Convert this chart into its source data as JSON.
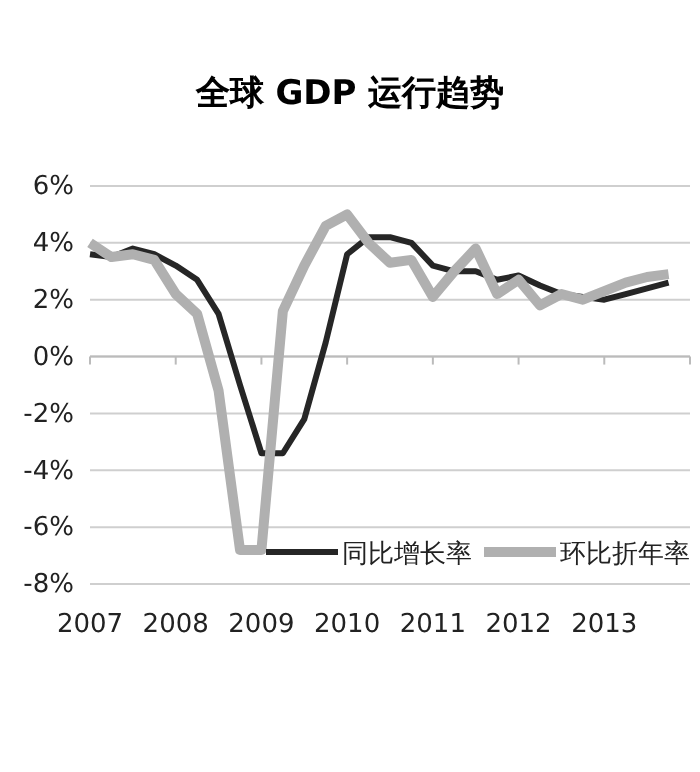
{
  "chart_data": {
    "type": "line",
    "title": "全球 GDP 运行趋势",
    "x": [
      2007,
      2007.25,
      2007.5,
      2007.75,
      2008,
      2008.25,
      2008.5,
      2008.75,
      2009,
      2009.25,
      2009.5,
      2009.75,
      2010,
      2010.25,
      2010.5,
      2010.75,
      2011,
      2011.25,
      2011.5,
      2011.75,
      2012,
      2012.25,
      2012.5,
      2012.75,
      2013,
      2013.25,
      2013.5,
      2013.75
    ],
    "series": [
      {
        "name": "同比增长率",
        "color": "#262626",
        "values": [
          3.6,
          3.5,
          3.8,
          3.6,
          3.2,
          2.7,
          1.5,
          -1.0,
          -3.4,
          -3.4,
          -2.2,
          0.5,
          3.6,
          4.2,
          4.2,
          4.0,
          3.2,
          3.0,
          3.0,
          2.7,
          2.85,
          2.5,
          2.2,
          2.1,
          2.0,
          2.2,
          2.4,
          2.6
        ]
      },
      {
        "name": "环比折年率",
        "color": "#b0b0b0",
        "values": [
          4.0,
          3.5,
          3.6,
          3.4,
          2.2,
          1.5,
          -1.2,
          -6.8,
          -6.8,
          1.6,
          3.2,
          4.6,
          5.0,
          4.0,
          3.3,
          3.4,
          2.1,
          3.0,
          3.8,
          2.2,
          2.7,
          1.8,
          2.2,
          2.0,
          2.3,
          2.6,
          2.8,
          2.9
        ]
      }
    ],
    "xlim": [
      2007,
      2014
    ],
    "xticks": [
      2007,
      2008,
      2009,
      2010,
      2011,
      2012,
      2013,
      {
        "value": 2014,
        "label": null
      }
    ],
    "ylim": [
      -8,
      6
    ],
    "yticks": [
      {
        "value": -8,
        "label": "-8%"
      },
      {
        "value": -6,
        "label": "-6%"
      },
      {
        "value": -4,
        "label": "-4%"
      },
      {
        "value": -2,
        "label": "-2%"
      },
      {
        "value": 0,
        "label": "0%"
      },
      {
        "value": 2,
        "label": "2%"
      },
      {
        "value": 4,
        "label": "4%"
      },
      {
        "value": 6,
        "label": "6%"
      }
    ],
    "ref_lines": [
      {
        "axis": "y",
        "value": 0,
        "color": "#bbbbbb"
      }
    ],
    "grid": "y",
    "legend": "bottom right",
    "marker": "none",
    "line_style": "solid"
  }
}
